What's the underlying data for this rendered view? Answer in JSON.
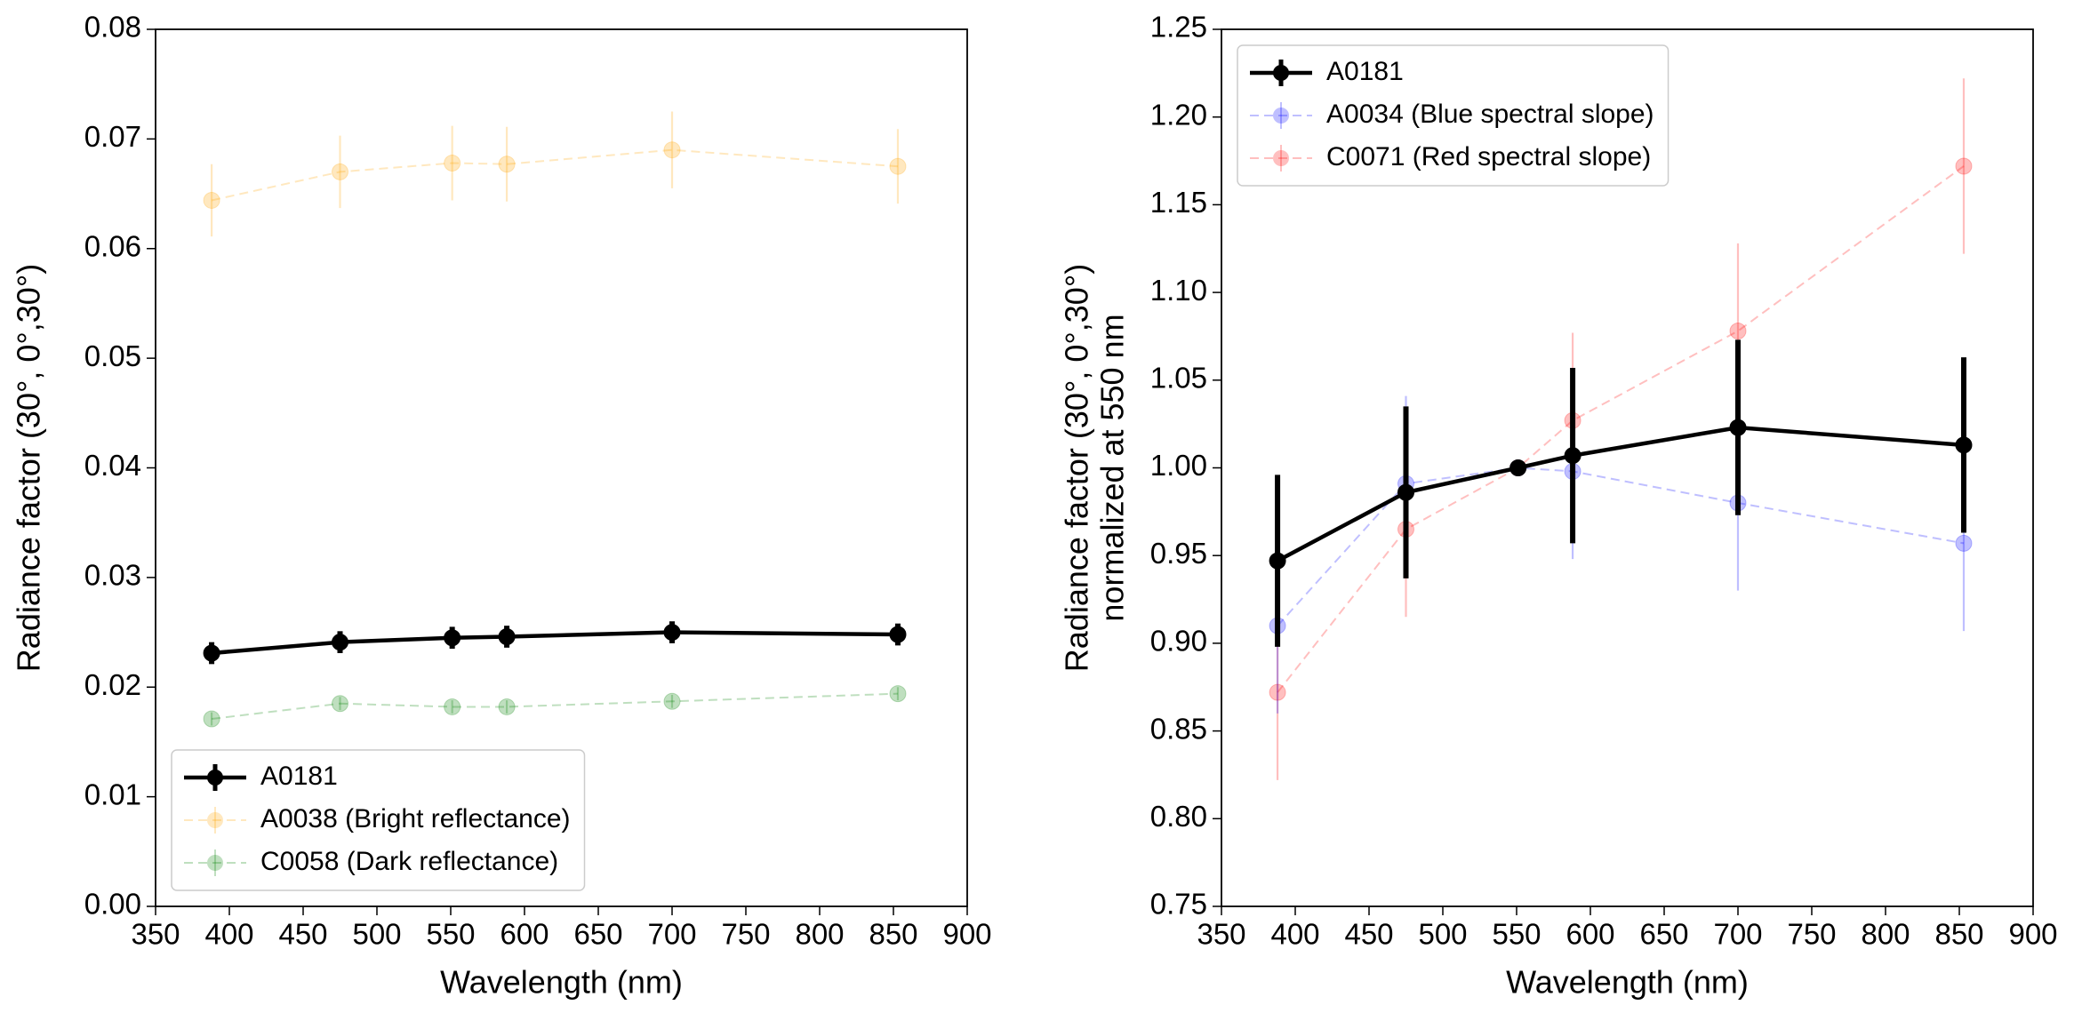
{
  "chart_data": [
    {
      "type": "errorbar-line",
      "xlabel": "Wavelength (nm)",
      "ylabel": [
        "Radiance factor (30°, 0°,30°)"
      ],
      "x": [
        388,
        475,
        551,
        588,
        700,
        853
      ],
      "series": [
        {
          "name": "A0181",
          "color": "#000000",
          "style": "solid",
          "values": [
            0.0231,
            0.0241,
            0.0245,
            0.0246,
            0.025,
            0.0248
          ],
          "errors": [
            0.001,
            0.001,
            0.001,
            0.001,
            0.001,
            0.001
          ]
        },
        {
          "name": "A0038 (Bright reflectance)",
          "color": "rgba(255,165,0,0.25)",
          "style": "dashed",
          "values": [
            0.0644,
            0.067,
            0.0678,
            0.0677,
            0.069,
            0.0675
          ],
          "errors": [
            0.0033,
            0.0033,
            0.0034,
            0.0034,
            0.0035,
            0.0034
          ]
        },
        {
          "name": "C0058 (Dark reflectance)",
          "color": "rgba(0,128,0,0.25)",
          "style": "dashed",
          "values": [
            0.0171,
            0.0185,
            0.0182,
            0.0182,
            0.0187,
            0.0194
          ],
          "errors": [
            0.0006,
            0.0006,
            0.0006,
            0.0006,
            0.0006,
            0.0006
          ]
        }
      ],
      "xlim": [
        350,
        900
      ],
      "xticks": [
        350,
        400,
        450,
        500,
        550,
        600,
        650,
        700,
        750,
        800,
        850,
        900
      ],
      "ylim": [
        0,
        0.08
      ],
      "yticks": [
        {
          "value": 0,
          "label": "0.00"
        },
        {
          "value": 0.01,
          "label": "0.01"
        },
        {
          "value": 0.02,
          "label": "0.02"
        },
        {
          "value": 0.03,
          "label": "0.03"
        },
        {
          "value": 0.04,
          "label": "0.04"
        },
        {
          "value": 0.05,
          "label": "0.05"
        },
        {
          "value": 0.06,
          "label": "0.06"
        },
        {
          "value": 0.07,
          "label": "0.07"
        },
        {
          "value": 0.08,
          "label": "0.08"
        }
      ],
      "legend": "lower left"
    },
    {
      "type": "errorbar-line",
      "xlabel": "Wavelength (nm)",
      "ylabel": [
        "Radiance factor (30°, 0°,30°)",
        "normalized at 550 nm"
      ],
      "x": [
        388,
        475,
        551,
        588,
        700,
        853
      ],
      "series": [
        {
          "name": "A0181",
          "color": "#000000",
          "style": "solid",
          "values": [
            0.947,
            0.986,
            1.0,
            1.007,
            1.023,
            1.013
          ],
          "errors": [
            0.049,
            0.049,
            0,
            0.05,
            0.05,
            0.05
          ]
        },
        {
          "name": "A0034 (Blue spectral slope)",
          "color": "rgba(0,0,255,0.25)",
          "style": "dashed",
          "values": [
            0.91,
            0.991,
            1.0,
            0.998,
            0.98,
            0.957
          ],
          "errors": [
            0.05,
            0.05,
            0,
            0.05,
            0.05,
            0.05
          ]
        },
        {
          "name": "C0071 (Red spectral slope)",
          "color": "rgba(255,0,0,0.25)",
          "style": "dashed",
          "values": [
            0.872,
            0.965,
            1.0,
            1.027,
            1.078,
            1.172
          ],
          "errors": [
            0.05,
            0.05,
            0,
            0.05,
            0.05,
            0.05
          ]
        }
      ],
      "xlim": [
        350,
        900
      ],
      "xticks": [
        350,
        400,
        450,
        500,
        550,
        600,
        650,
        700,
        750,
        800,
        850,
        900
      ],
      "ylim": [
        0.75,
        1.25
      ],
      "yticks": [
        0.75,
        {
          "value": 0.8,
          "label": "0.80"
        },
        0.85,
        {
          "value": 0.9,
          "label": "0.90"
        },
        0.95,
        {
          "value": 1.0,
          "label": "1.00"
        },
        1.05,
        {
          "value": 1.1,
          "label": "1.10"
        },
        1.15,
        {
          "value": 1.2,
          "label": "1.20"
        },
        1.25
      ],
      "legend": "upper left"
    }
  ]
}
